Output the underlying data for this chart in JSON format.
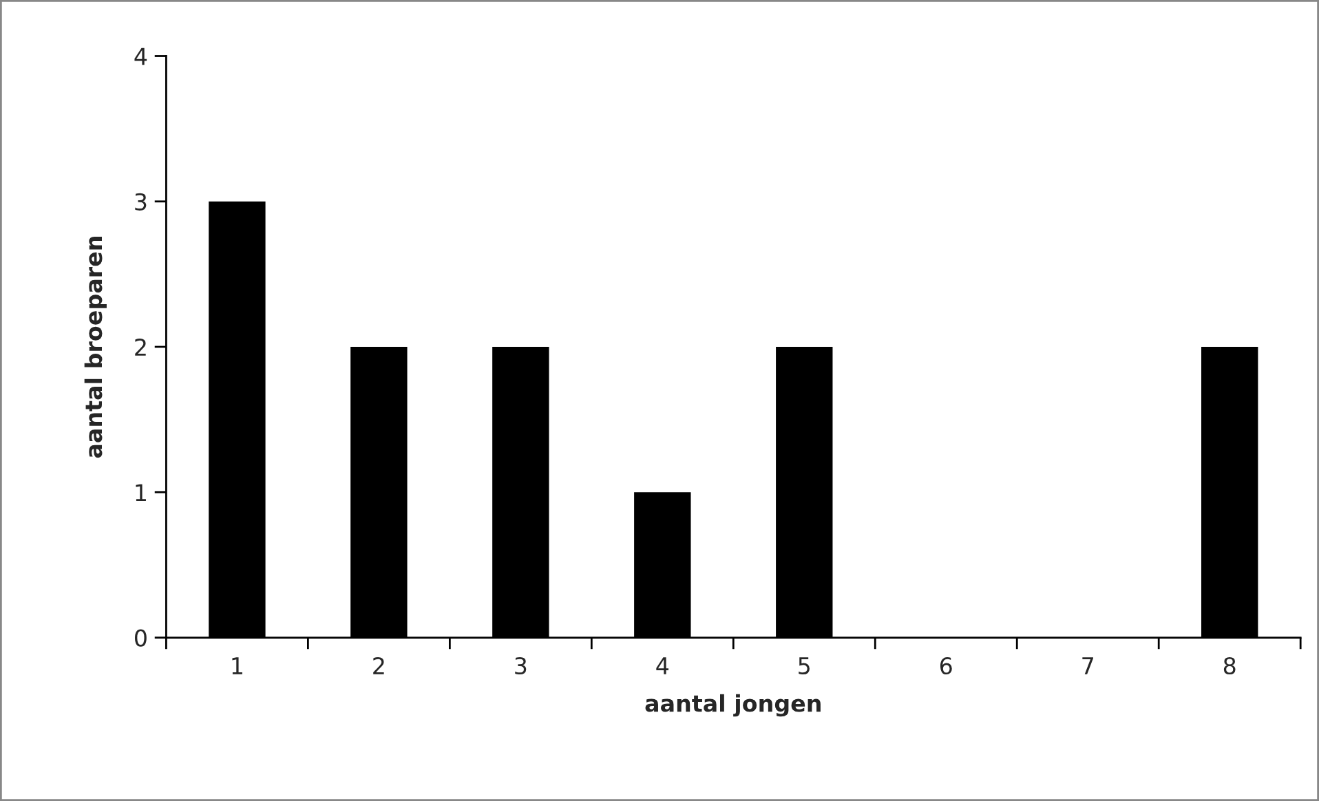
{
  "chart_data": {
    "type": "bar",
    "xlabel": "aantal jongen",
    "ylabel": "aantal broeparen",
    "categories": [
      "1",
      "2",
      "3",
      "4",
      "5",
      "6",
      "7",
      "8"
    ],
    "values": [
      3,
      2,
      2,
      1,
      2,
      0,
      0,
      2
    ],
    "color": "#000000",
    "ylim": [
      0,
      4
    ],
    "yticks": [
      0,
      1,
      2,
      3,
      4
    ],
    "grid": false,
    "legend": false
  }
}
